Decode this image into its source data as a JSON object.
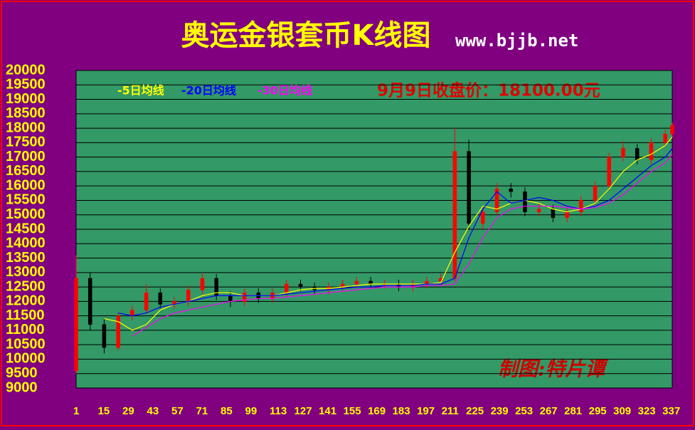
{
  "chart_data": {
    "type": "candlestick",
    "title": "奥运金银套币K线图",
    "subtitle": "www.bjjb.net",
    "annotation": "9月9日收盘价：18100.00元",
    "credit": "制图:特片谭",
    "up_color": "#ff0000",
    "down_color": "#000000",
    "background": "#339966",
    "grid": true,
    "x": [
      1,
      9,
      17,
      25,
      33,
      41,
      49,
      57,
      65,
      73,
      81,
      89,
      97,
      105,
      113,
      121,
      129,
      137,
      145,
      153,
      161,
      169,
      177,
      185,
      193,
      201,
      209,
      217,
      225,
      233,
      241,
      249,
      257,
      265,
      273,
      281,
      289,
      297,
      305,
      313,
      321,
      329,
      337,
      341
    ],
    "open": [
      9600,
      12800,
      11200,
      10400,
      11500,
      11700,
      12300,
      11900,
      12000,
      12400,
      12800,
      12200,
      12000,
      12300,
      12100,
      12300,
      12600,
      12500,
      12400,
      12500,
      12600,
      12700,
      12600,
      12600,
      12500,
      12600,
      12700,
      12800,
      17200,
      14700,
      15100,
      15900,
      15800,
      15100,
      15200,
      14900,
      15100,
      15500,
      16000,
      17000,
      17300,
      16900,
      17500,
      17800
    ],
    "high": [
      13600,
      13000,
      11400,
      11600,
      11850,
      12600,
      12450,
      12150,
      12550,
      13000,
      12950,
      12350,
      12450,
      12450,
      12450,
      12750,
      12750,
      12650,
      12650,
      12750,
      12850,
      12850,
      12750,
      12750,
      12750,
      12850,
      12950,
      18000,
      17600,
      15300,
      16100,
      16100,
      15950,
      15400,
      15350,
      15250,
      15650,
      16150,
      17150,
      17550,
      17450,
      17650,
      17950,
      18200
    ],
    "low": [
      9500,
      11000,
      10200,
      10300,
      11350,
      11600,
      11750,
      11750,
      11850,
      12250,
      12050,
      11800,
      11850,
      11950,
      11950,
      12150,
      12350,
      12250,
      12250,
      12350,
      12450,
      12450,
      12450,
      12350,
      12350,
      12450,
      12550,
      12700,
      14500,
      14500,
      15000,
      15600,
      14950,
      14950,
      14750,
      14750,
      14950,
      15350,
      15850,
      16850,
      16750,
      16750,
      17350,
      17700
    ],
    "close": [
      12800,
      11200,
      10400,
      11500,
      11700,
      12300,
      11900,
      12000,
      12400,
      12800,
      12200,
      12000,
      12300,
      12100,
      12300,
      12600,
      12500,
      12400,
      12500,
      12600,
      12700,
      12600,
      12600,
      12500,
      12600,
      12700,
      12800,
      17200,
      14700,
      15100,
      15900,
      15800,
      15100,
      15200,
      14900,
      15100,
      15500,
      16000,
      17000,
      17300,
      16900,
      17500,
      17800,
      18100
    ],
    "series": [
      {
        "name": "-5日均线",
        "color": "#ffff00",
        "values": [
          null,
          null,
          11400,
          11300,
          11000,
          11200,
          11700,
          11900,
          12000,
          12200,
          12300,
          12300,
          12200,
          12200,
          12200,
          12300,
          12400,
          12450,
          12450,
          12500,
          12550,
          12600,
          12600,
          12600,
          12600,
          12600,
          12650,
          13700,
          14600,
          15300,
          15200,
          15400,
          15500,
          15400,
          15200,
          15100,
          15200,
          15400,
          15900,
          16500,
          16900,
          17100,
          17400,
          17700
        ]
      },
      {
        "name": "-20日均线",
        "color": "#0000ff",
        "values": [
          null,
          null,
          null,
          11600,
          11500,
          11600,
          11800,
          11900,
          12000,
          12100,
          12200,
          12200,
          12200,
          12200,
          12200,
          12250,
          12300,
          12350,
          12400,
          12450,
          12500,
          12500,
          12550,
          12550,
          12550,
          12600,
          12600,
          12800,
          14200,
          15200,
          15800,
          15400,
          15500,
          15600,
          15500,
          15300,
          15200,
          15300,
          15500,
          15900,
          16300,
          16700,
          17000,
          17300
        ]
      },
      {
        "name": "-30日均线",
        "color": "#ff00ff",
        "values": [
          null,
          null,
          null,
          null,
          10800,
          11100,
          11400,
          11600,
          11700,
          11800,
          11900,
          12000,
          12050,
          12100,
          12100,
          12150,
          12200,
          12250,
          12300,
          12350,
          12400,
          12450,
          12500,
          12500,
          12500,
          12550,
          12550,
          12600,
          13300,
          14200,
          14900,
          15200,
          15300,
          15300,
          15300,
          15250,
          15200,
          15250,
          15400,
          15700,
          16100,
          16500,
          16800,
          17100
        ]
      }
    ],
    "xlim": [
      1,
      341
    ],
    "xticks": [
      1,
      15,
      29,
      43,
      57,
      71,
      85,
      99,
      113,
      127,
      141,
      155,
      169,
      183,
      197,
      211,
      225,
      239,
      253,
      267,
      281,
      295,
      309,
      323,
      337
    ],
    "ylim": [
      9000,
      20000
    ],
    "yticks": [
      9000,
      9500,
      10000,
      10500,
      11000,
      11500,
      12000,
      12500,
      13000,
      13500,
      14000,
      14500,
      15000,
      15500,
      16000,
      16500,
      17000,
      17500,
      18000,
      18500,
      19000,
      19500,
      20000
    ]
  }
}
